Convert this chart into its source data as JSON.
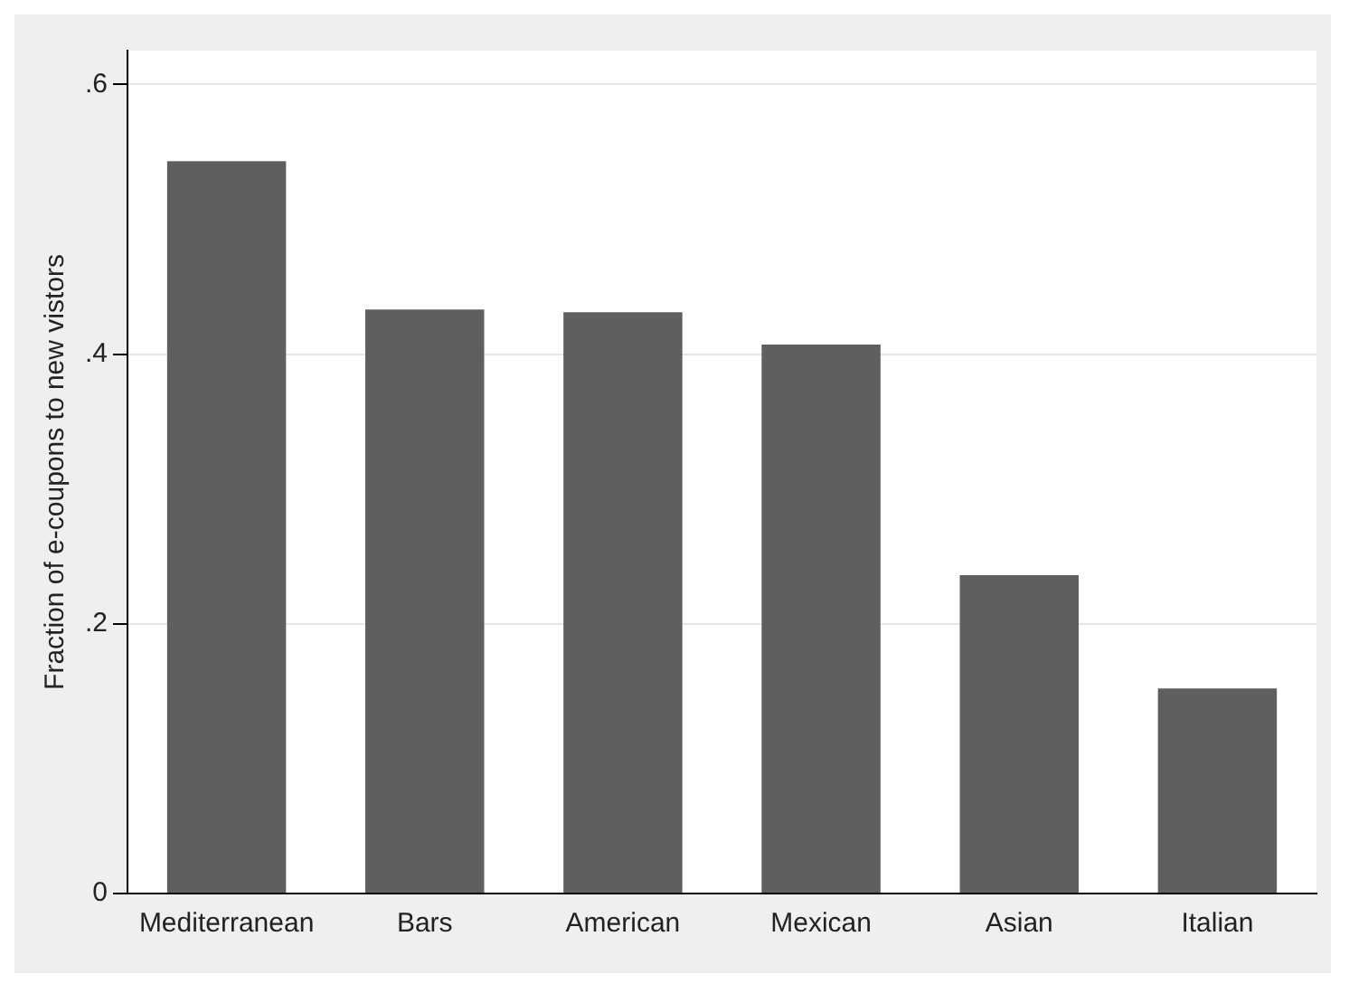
{
  "chart_data": {
    "type": "bar",
    "ylabel": "Fraction of e-coupons to new vistors",
    "categories": [
      "Mediterranean",
      "Bars",
      "American",
      "Mexican",
      "Asian",
      "Italian"
    ],
    "values": [
      0.543,
      0.433,
      0.431,
      0.407,
      0.236,
      0.152
    ],
    "color": "#5f5f5f",
    "ylim": [
      0,
      0.625
    ],
    "yticks": [
      0,
      {
        "value": 0.2,
        "label": ".2"
      },
      {
        "value": 0.4,
        "label": ".4"
      },
      {
        "value": 0.6,
        "label": ".6"
      }
    ],
    "grid": "y"
  }
}
